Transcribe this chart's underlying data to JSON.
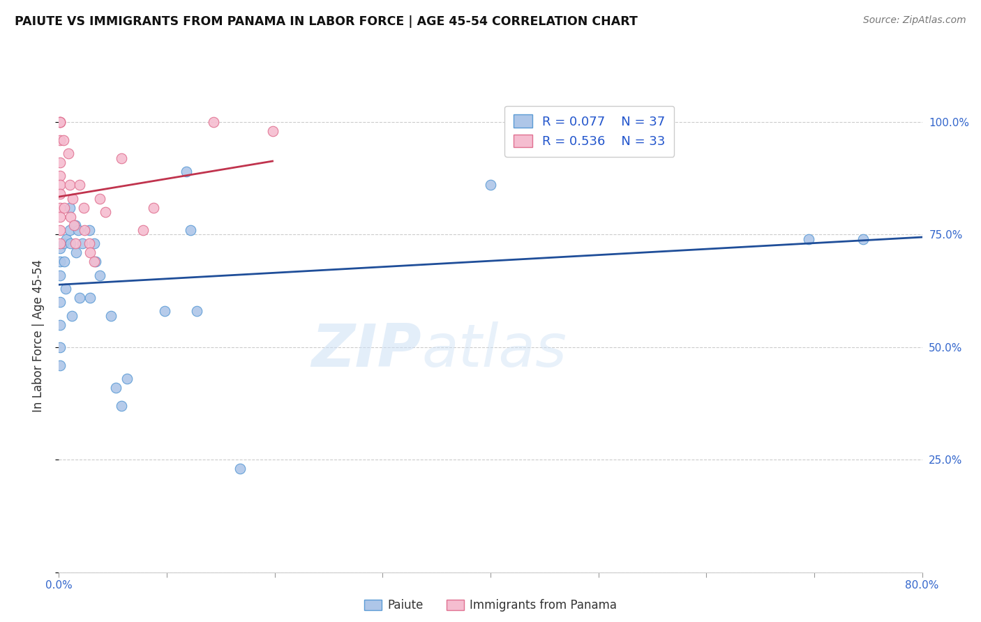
{
  "title": "PAIUTE VS IMMIGRANTS FROM PANAMA IN LABOR FORCE | AGE 45-54 CORRELATION CHART",
  "source": "Source: ZipAtlas.com",
  "ylabel": "In Labor Force | Age 45-54",
  "xlim": [
    0.0,
    0.8
  ],
  "ylim": [
    0.0,
    1.05
  ],
  "xticks": [
    0.0,
    0.1,
    0.2,
    0.3,
    0.4,
    0.5,
    0.6,
    0.7,
    0.8
  ],
  "xticklabels": [
    "0.0%",
    "",
    "",
    "",
    "",
    "",
    "",
    "",
    "80.0%"
  ],
  "yticks": [
    0.0,
    0.25,
    0.5,
    0.75,
    1.0
  ],
  "yticklabels": [
    "",
    "25.0%",
    "50.0%",
    "75.0%",
    "100.0%"
  ],
  "grid_color": "#cccccc",
  "background_color": "#ffffff",
  "legend_R1": "0.077",
  "legend_N1": "37",
  "legend_R2": "0.536",
  "legend_N2": "33",
  "paiute_color": "#aec6e8",
  "paiute_edge_color": "#5b9bd5",
  "panama_color": "#f5bdd0",
  "panama_edge_color": "#e07090",
  "trendline_blue_color": "#1f4e99",
  "trendline_pink_color": "#c0334d",
  "watermark_zip": "ZIP",
  "watermark_atlas": "atlas",
  "legend_label1": "Paiute",
  "legend_label2": "Immigrants from Panama",
  "paiute_x": [
    0.001,
    0.001,
    0.001,
    0.001,
    0.001,
    0.001,
    0.001,
    0.004,
    0.005,
    0.006,
    0.007,
    0.01,
    0.01,
    0.011,
    0.012,
    0.015,
    0.016,
    0.018,
    0.019,
    0.022,
    0.028,
    0.029,
    0.033,
    0.034,
    0.038,
    0.048,
    0.053,
    0.058,
    0.063,
    0.098,
    0.118,
    0.122,
    0.128,
    0.168,
    0.4,
    0.695,
    0.745
  ],
  "paiute_y": [
    0.72,
    0.69,
    0.66,
    0.6,
    0.55,
    0.5,
    0.46,
    0.73,
    0.69,
    0.63,
    0.74,
    0.81,
    0.76,
    0.73,
    0.57,
    0.77,
    0.71,
    0.76,
    0.61,
    0.73,
    0.76,
    0.61,
    0.73,
    0.69,
    0.66,
    0.57,
    0.41,
    0.37,
    0.43,
    0.58,
    0.89,
    0.76,
    0.58,
    0.23,
    0.86,
    0.74,
    0.74
  ],
  "panama_x": [
    0.001,
    0.001,
    0.001,
    0.001,
    0.001,
    0.001,
    0.001,
    0.001,
    0.001,
    0.001,
    0.001,
    0.001,
    0.004,
    0.005,
    0.009,
    0.01,
    0.011,
    0.013,
    0.014,
    0.015,
    0.019,
    0.023,
    0.024,
    0.028,
    0.029,
    0.033,
    0.038,
    0.043,
    0.058,
    0.078,
    0.088,
    0.143,
    0.198
  ],
  "panama_y": [
    1.0,
    1.0,
    1.0,
    0.96,
    0.91,
    0.88,
    0.86,
    0.84,
    0.81,
    0.79,
    0.76,
    0.73,
    0.96,
    0.81,
    0.93,
    0.86,
    0.79,
    0.83,
    0.77,
    0.73,
    0.86,
    0.81,
    0.76,
    0.73,
    0.71,
    0.69,
    0.83,
    0.8,
    0.92,
    0.76,
    0.81,
    1.0,
    0.98
  ]
}
